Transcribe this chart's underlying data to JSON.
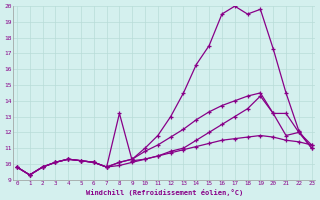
{
  "xlabel": "Windchill (Refroidissement éolien,°C)",
  "bg_color": "#d4f0ee",
  "grid_color": "#b8dcd8",
  "line_color": "#880088",
  "xlim": [
    0,
    23
  ],
  "ylim": [
    9,
    20
  ],
  "lines": [
    {
      "x": [
        0,
        1,
        2,
        3,
        4,
        5,
        6,
        7,
        8,
        9,
        10,
        11,
        12,
        13,
        14,
        15,
        16,
        17,
        18,
        19,
        20,
        21,
        22,
        23
      ],
      "y": [
        9.8,
        9.3,
        9.8,
        10.1,
        10.3,
        10.2,
        10.1,
        9.8,
        10.1,
        10.3,
        11.0,
        11.8,
        13.0,
        14.5,
        16.3,
        17.5,
        19.5,
        20.0,
        19.5,
        19.8,
        17.3,
        14.5,
        12.1,
        11.0
      ]
    },
    {
      "x": [
        0,
        1,
        2,
        3,
        4,
        5,
        6,
        7,
        8,
        9,
        10,
        11,
        12,
        13,
        14,
        15,
        16,
        17,
        18,
        19,
        20,
        21,
        22,
        23
      ],
      "y": [
        9.8,
        9.3,
        9.8,
        10.1,
        10.3,
        10.2,
        10.1,
        9.8,
        13.2,
        10.2,
        10.3,
        10.5,
        10.8,
        11.0,
        11.5,
        12.0,
        12.5,
        13.0,
        13.5,
        14.3,
        13.2,
        11.8,
        12.0,
        11.0
      ]
    },
    {
      "x": [
        0,
        1,
        2,
        3,
        4,
        5,
        6,
        7,
        8,
        9,
        10,
        11,
        12,
        13,
        14,
        15,
        16,
        17,
        18,
        19,
        20,
        21,
        22,
        23
      ],
      "y": [
        9.8,
        9.3,
        9.8,
        10.1,
        10.3,
        10.2,
        10.1,
        9.8,
        10.1,
        10.3,
        10.8,
        11.2,
        11.7,
        12.2,
        12.8,
        13.3,
        13.7,
        14.0,
        14.3,
        14.5,
        13.2,
        13.2,
        12.0,
        11.2
      ]
    },
    {
      "x": [
        0,
        1,
        2,
        3,
        4,
        5,
        6,
        7,
        8,
        9,
        10,
        11,
        12,
        13,
        14,
        15,
        16,
        17,
        18,
        19,
        20,
        21,
        22,
        23
      ],
      "y": [
        9.8,
        9.3,
        9.8,
        10.1,
        10.3,
        10.2,
        10.1,
        9.8,
        9.9,
        10.1,
        10.3,
        10.5,
        10.7,
        10.9,
        11.1,
        11.3,
        11.5,
        11.6,
        11.7,
        11.8,
        11.7,
        11.5,
        11.4,
        11.2
      ]
    }
  ]
}
